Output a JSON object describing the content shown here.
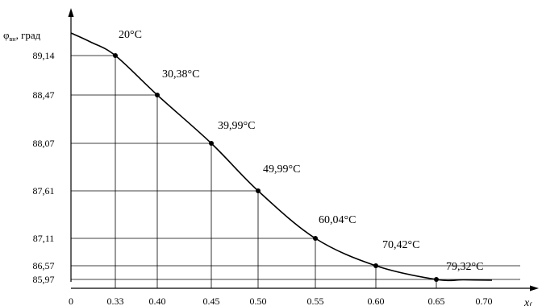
{
  "chart_data": {
    "type": "line",
    "ylabel": {
      "main": "φ",
      "sub": "вн",
      "rest": ", град"
    },
    "xlabel": {
      "main": "x",
      "sub": "f"
    },
    "x_ticks": [
      "0",
      "0.33",
      "0.40",
      "0.45",
      "0.50",
      "0.55",
      "0.60",
      "0.65",
      "0.70"
    ],
    "y_ticks": [
      "89,14",
      "88,47",
      "88,07",
      "87,61",
      "87,11",
      "86,57",
      "85,97"
    ],
    "points": [
      {
        "x": 0.33,
        "y": 89.14,
        "label": "20°C"
      },
      {
        "x": 0.4,
        "y": 88.47,
        "label": "30,38°C"
      },
      {
        "x": 0.45,
        "y": 88.07,
        "label": "39,99°C"
      },
      {
        "x": 0.5,
        "y": 87.61,
        "label": "49,99°C"
      },
      {
        "x": 0.55,
        "y": 87.11,
        "label": "60,04°C"
      },
      {
        "x": 0.6,
        "y": 86.57,
        "label": "70,42°C"
      },
      {
        "x": 0.65,
        "y": 85.97,
        "label": "79,32°C"
      }
    ],
    "grid": "drop-lines"
  }
}
